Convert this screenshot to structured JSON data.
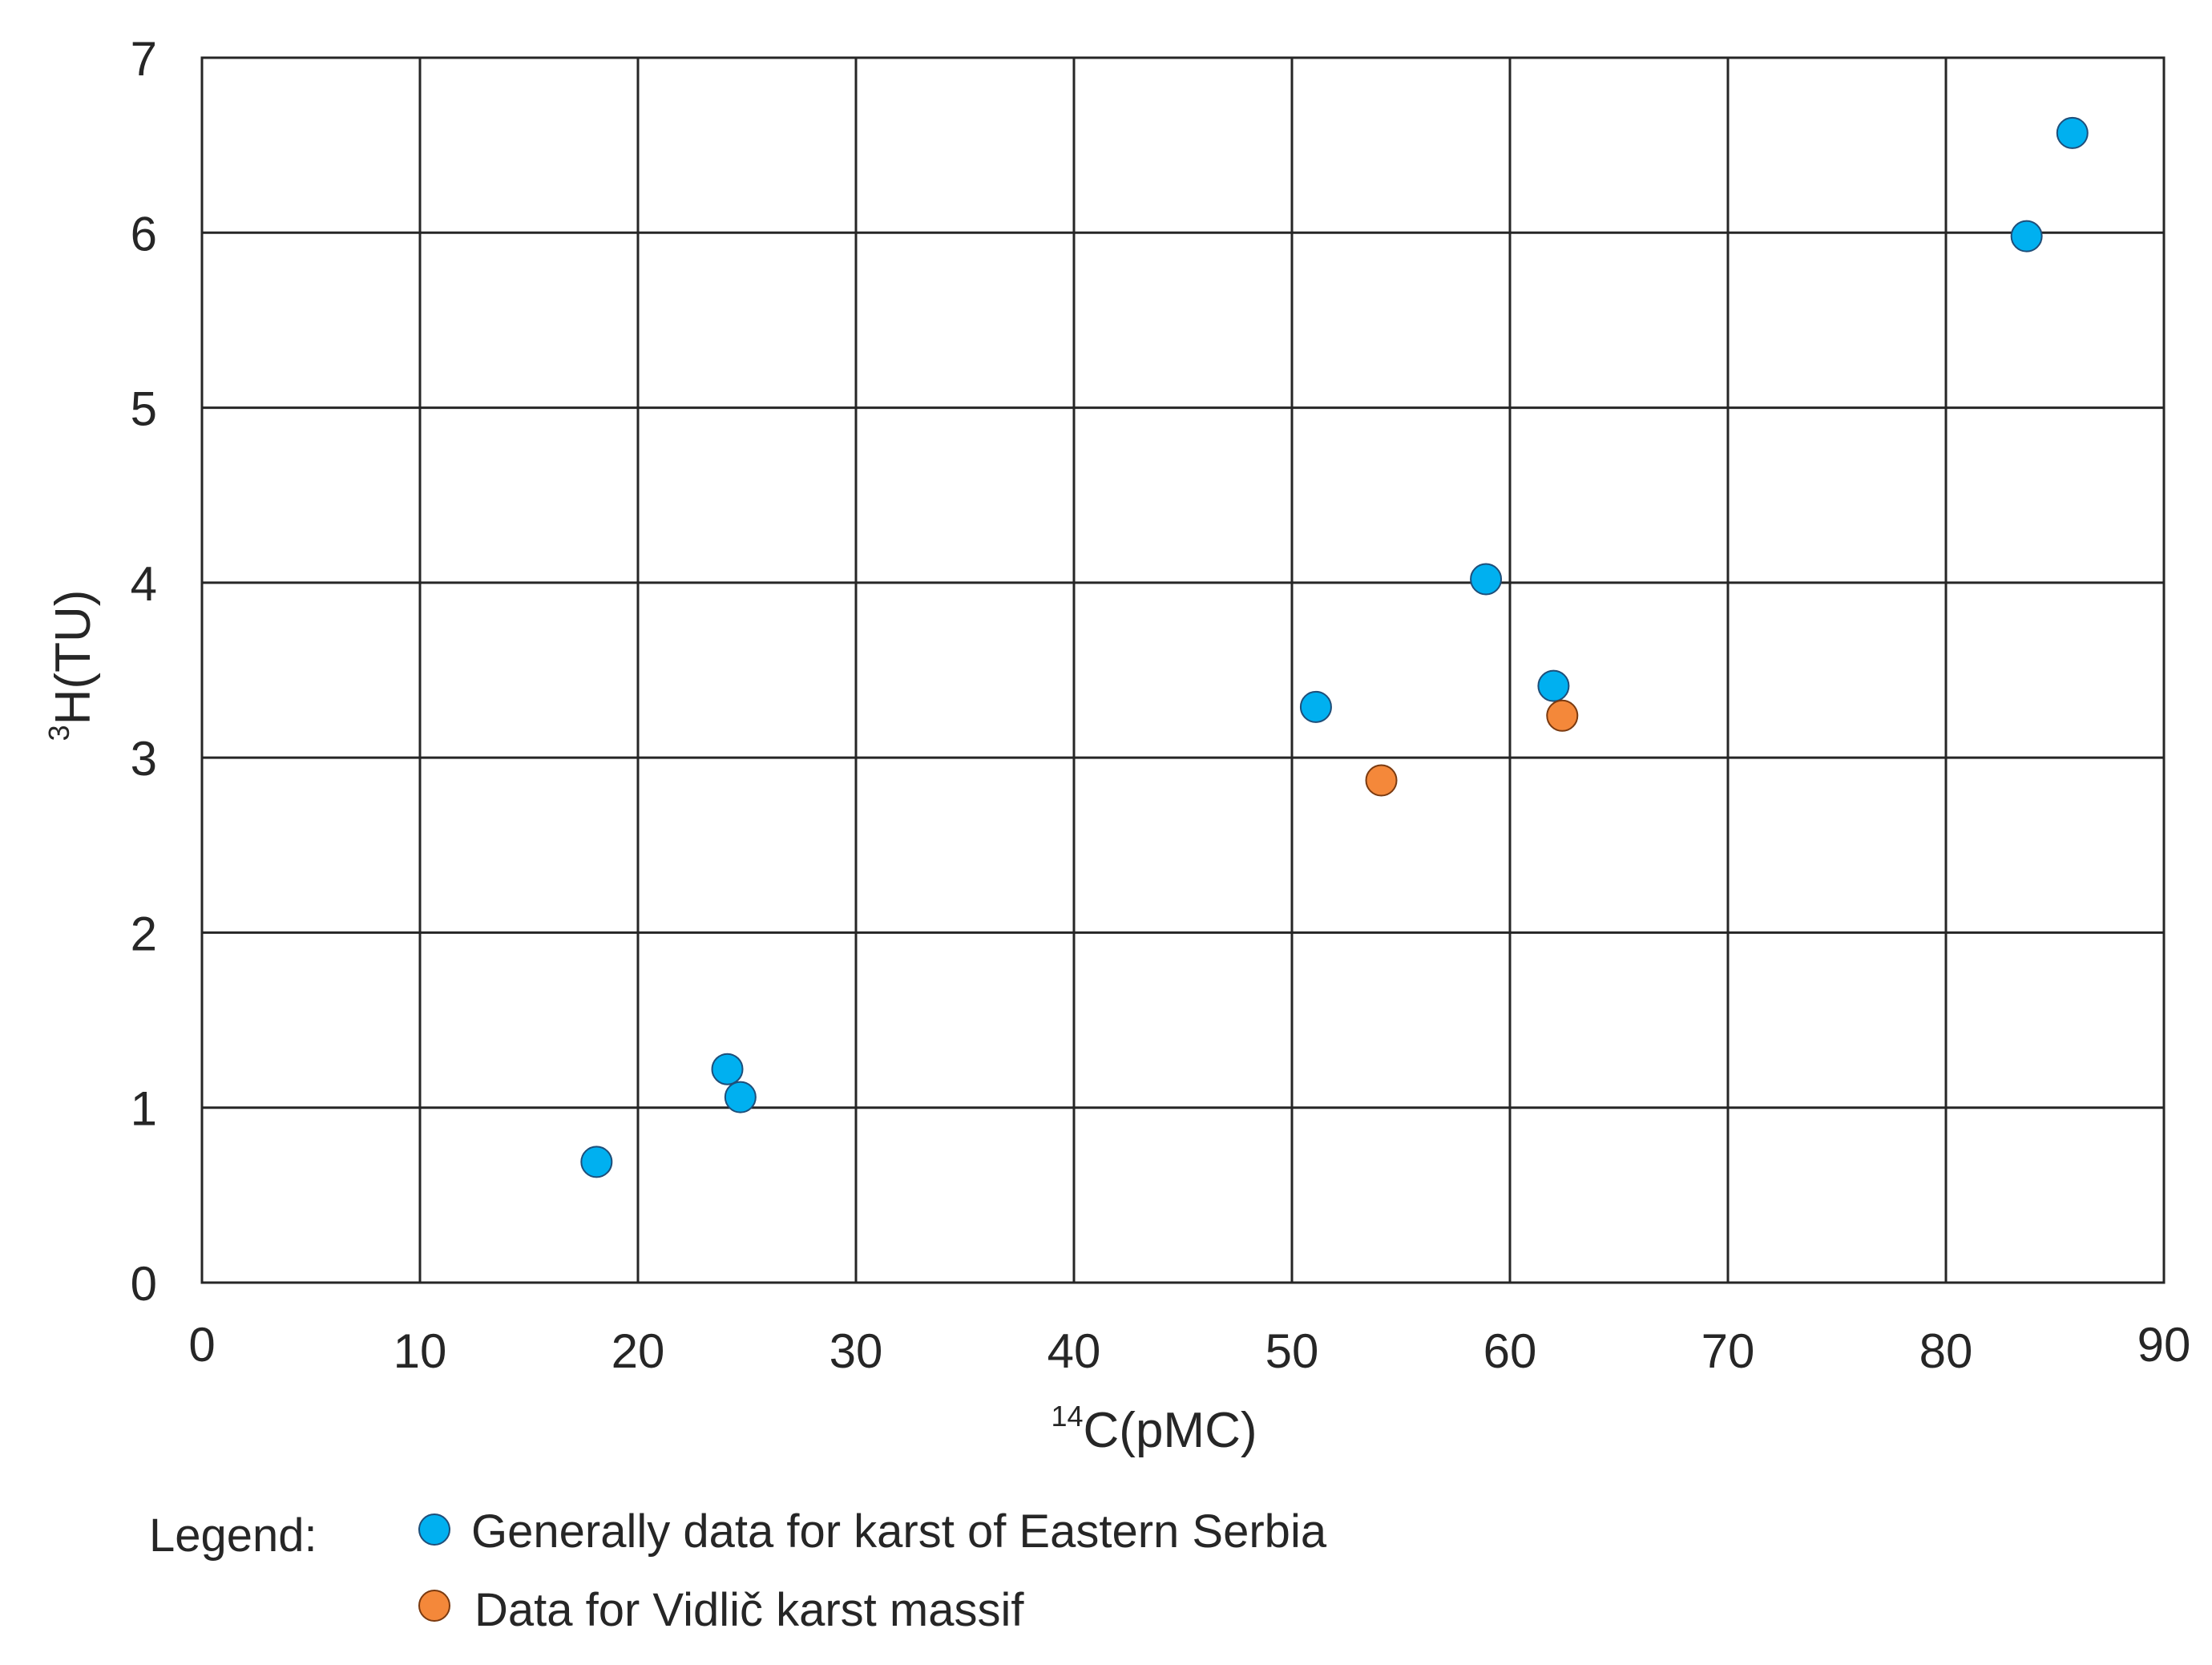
{
  "chart_data": {
    "type": "scatter",
    "title": "",
    "xlabel": {
      "sup": "14",
      "main": "C(pMC)"
    },
    "ylabel": {
      "sup": "3",
      "main": "H(TU)"
    },
    "xlim": [
      0,
      90
    ],
    "ylim": [
      0,
      7
    ],
    "x_ticks": [
      0,
      10,
      20,
      30,
      40,
      50,
      60,
      70,
      80,
      90
    ],
    "y_ticks": [
      0,
      1,
      2,
      3,
      4,
      5,
      6,
      7
    ],
    "grid": true,
    "legend_position": "bottom-left",
    "legend_title": "Legend:",
    "series": [
      {
        "name": "Generally data for karst of Eastern Serbia",
        "color": "#00b0f0",
        "points": [
          {
            "x": 18.1,
            "y": 0.69
          },
          {
            "x": 24.1,
            "y": 1.22
          },
          {
            "x": 24.7,
            "y": 1.06
          },
          {
            "x": 51.1,
            "y": 3.29
          },
          {
            "x": 58.9,
            "y": 4.02
          },
          {
            "x": 62.0,
            "y": 3.41
          },
          {
            "x": 83.7,
            "y": 5.98
          },
          {
            "x": 85.8,
            "y": 6.57
          }
        ]
      },
      {
        "name": "Data for Vidlič karst massif",
        "color": "#f4883a",
        "points": [
          {
            "x": 54.1,
            "y": 2.87
          },
          {
            "x": 62.4,
            "y": 3.24
          }
        ]
      }
    ]
  }
}
